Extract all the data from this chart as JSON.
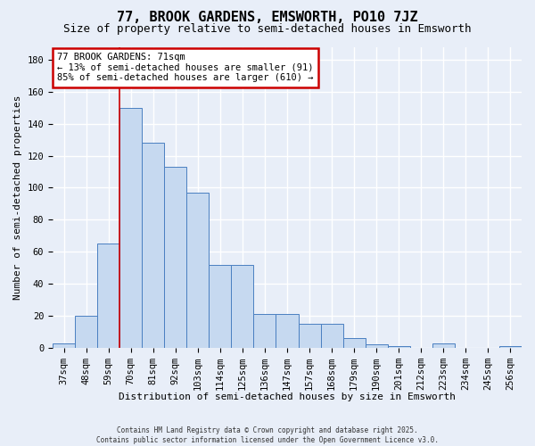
{
  "title": "77, BROOK GARDENS, EMSWORTH, PO10 7JZ",
  "subtitle": "Size of property relative to semi-detached houses in Emsworth",
  "xlabel": "Distribution of semi-detached houses by size in Emsworth",
  "ylabel": "Number of semi-detached properties",
  "categories": [
    "37sqm",
    "48sqm",
    "59sqm",
    "70sqm",
    "81sqm",
    "92sqm",
    "103sqm",
    "114sqm",
    "125sqm",
    "136sqm",
    "147sqm",
    "157sqm",
    "168sqm",
    "179sqm",
    "190sqm",
    "201sqm",
    "212sqm",
    "223sqm",
    "234sqm",
    "245sqm",
    "256sqm"
  ],
  "values": [
    3,
    20,
    65,
    150,
    128,
    113,
    97,
    52,
    52,
    21,
    21,
    15,
    15,
    6,
    2,
    1,
    0,
    3,
    0,
    0,
    1
  ],
  "bar_color": "#c6d9f0",
  "bar_edge_color": "#4a7fc1",
  "vline_color": "#cc0000",
  "vline_x": 3,
  "property_label": "77 BROOK GARDENS: 71sqm",
  "pct_smaller": 13,
  "pct_larger": 85,
  "n_smaller": 91,
  "n_larger": 610,
  "annotation_box_edge_color": "#cc0000",
  "ylim": [
    0,
    188
  ],
  "yticks": [
    0,
    20,
    40,
    60,
    80,
    100,
    120,
    140,
    160,
    180
  ],
  "footer_line1": "Contains HM Land Registry data © Crown copyright and database right 2025.",
  "footer_line2": "Contains public sector information licensed under the Open Government Licence v3.0.",
  "background_color": "#e8eef8",
  "plot_background": "#e8eef8",
  "grid_color": "#ffffff",
  "title_fontsize": 11,
  "subtitle_fontsize": 9,
  "tick_fontsize": 7.5,
  "ylabel_fontsize": 8
}
